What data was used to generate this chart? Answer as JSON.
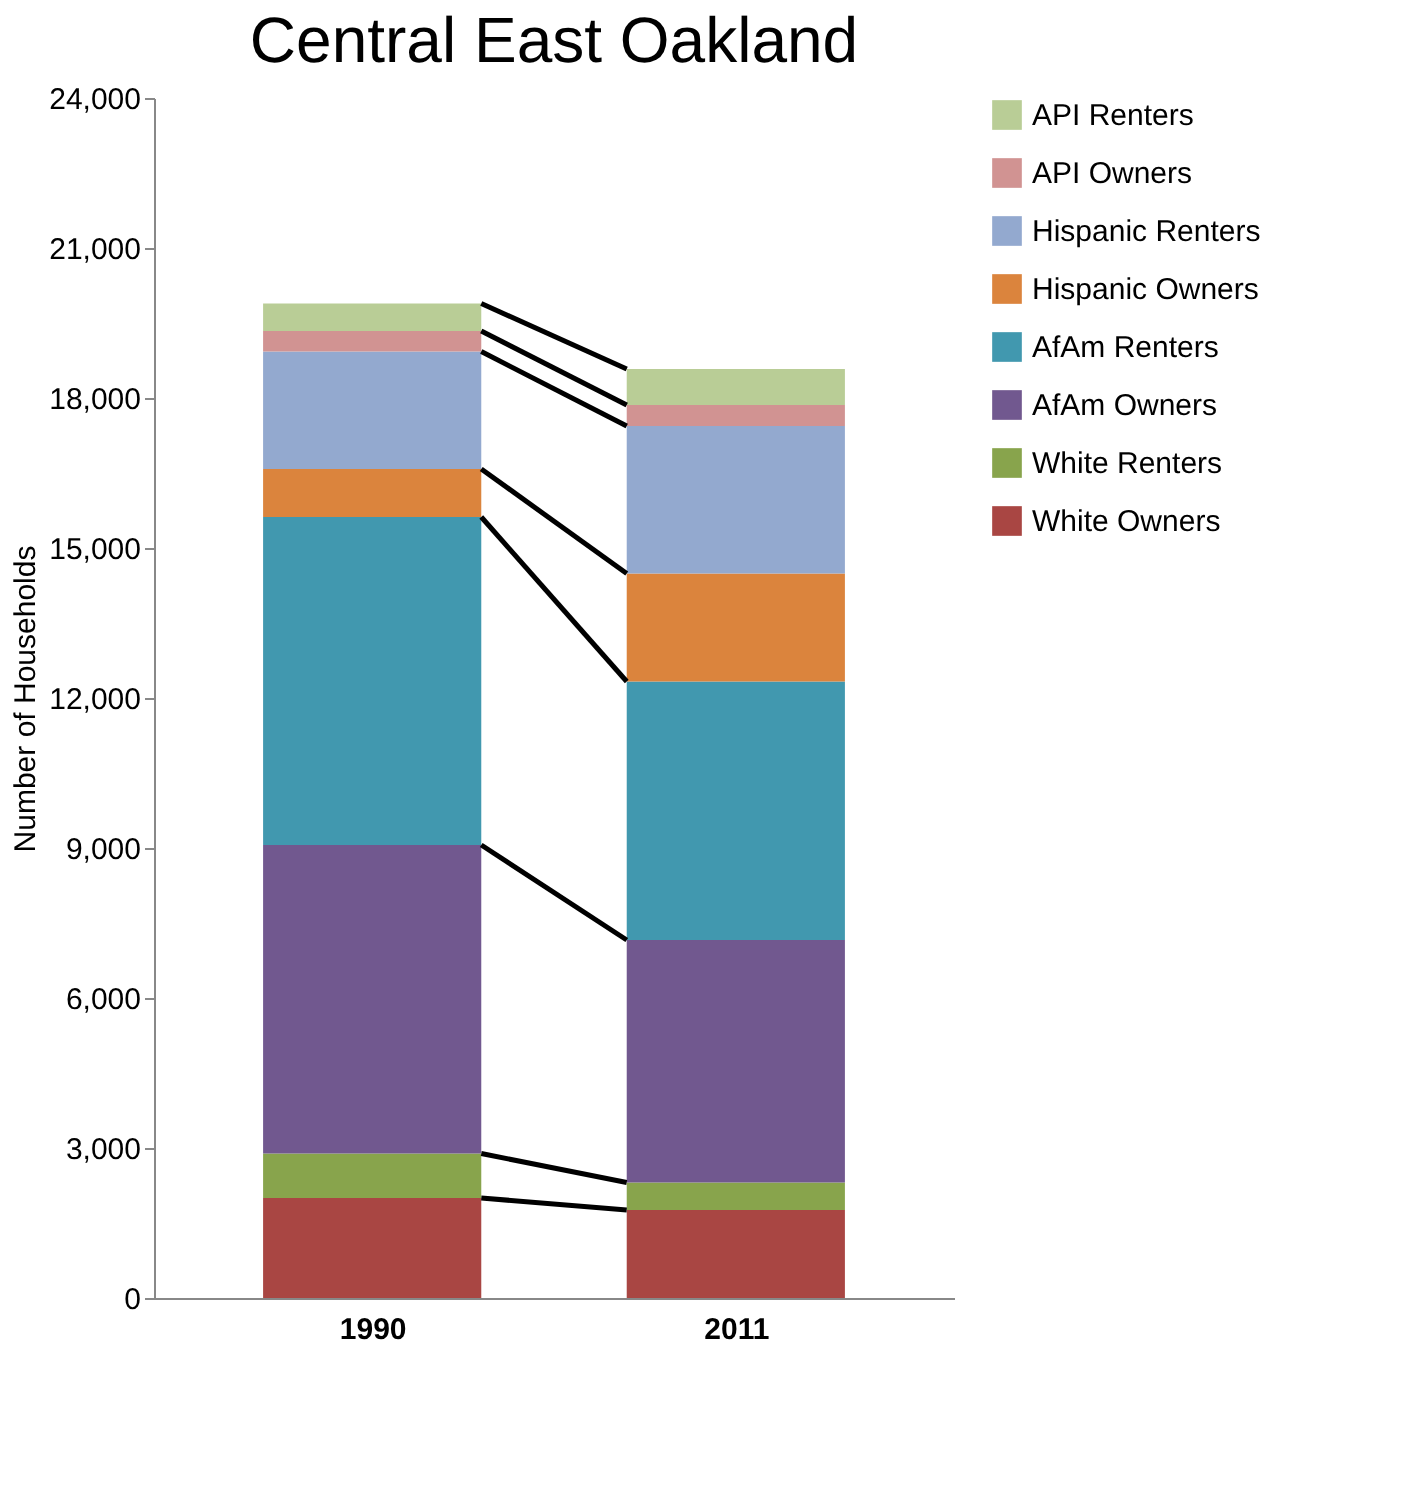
{
  "chart_data": {
    "type": "bar",
    "title": "Central East Oakland",
    "ylabel": "Number of Households",
    "categories": [
      "1990",
      "2011"
    ],
    "stacked": true,
    "legend": "right",
    "grid": false,
    "ylim": [
      0,
      24000
    ],
    "yticks": [
      0,
      {
        "value": 3000,
        "label": "3,000"
      },
      {
        "value": 6000,
        "label": "6,000"
      },
      {
        "value": 9000,
        "label": "9,000"
      },
      {
        "value": 12000,
        "label": "12,000"
      },
      {
        "value": 15000,
        "label": "15,000"
      },
      {
        "value": 18000,
        "label": "18,000"
      },
      {
        "value": 21000,
        "label": "21,000"
      },
      {
        "value": 24000,
        "label": "24,000"
      }
    ],
    "series": [
      {
        "name": "White Owners",
        "color": "#a94643",
        "values": [
          2000,
          1760
        ]
      },
      {
        "name": "White Renters",
        "color": "#88a44c",
        "values": [
          890,
          550
        ]
      },
      {
        "name": "AfAm Owners",
        "color": "#71588f",
        "values": [
          6170,
          4850
        ]
      },
      {
        "name": "AfAm Renters",
        "color": "#4198af",
        "values": [
          6560,
          5170
        ]
      },
      {
        "name": "Hispanic Owners",
        "color": "#db843d",
        "values": [
          960,
          2160
        ]
      },
      {
        "name": "Hispanic Renters",
        "color": "#93a9cf",
        "values": [
          2350,
          2950
        ]
      },
      {
        "name": "API Owners",
        "color": "#d19392",
        "values": [
          410,
          420
        ]
      },
      {
        "name": "API Renters",
        "color": "#b9cd96",
        "values": [
          550,
          720
        ]
      }
    ]
  }
}
